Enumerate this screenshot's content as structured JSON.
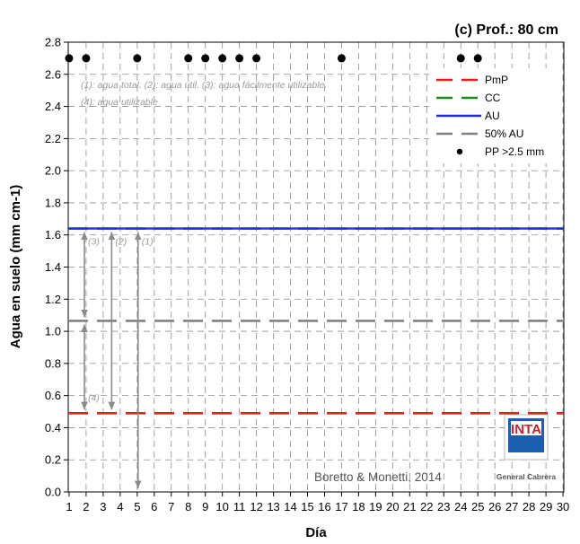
{
  "chart_data": {
    "type": "line",
    "title": "(c) Prof.: 80 cm",
    "xlabel": "Día",
    "ylabel": "Agua en suelo (mm cm-1)",
    "xlim": [
      1,
      30
    ],
    "ylim": [
      0,
      2.8
    ],
    "x_ticks": [
      1,
      2,
      3,
      4,
      5,
      6,
      7,
      8,
      9,
      10,
      11,
      12,
      13,
      14,
      15,
      16,
      17,
      18,
      19,
      20,
      21,
      22,
      23,
      24,
      25,
      26,
      27,
      28,
      29,
      30
    ],
    "y_ticks": [
      "0.0",
      "0.2",
      "0.4",
      "0.6",
      "0.8",
      "1.0",
      "1.2",
      "1.4",
      "1.6",
      "1.8",
      "2.0",
      "2.2",
      "2.4",
      "2.6",
      "2.8"
    ],
    "grid": true,
    "legend_position": "top-right",
    "series": [
      {
        "name": "PmP",
        "color": "#e0201b",
        "style": "dashed",
        "y": 0.49
      },
      {
        "name": "CC",
        "color": "#1a8a1a",
        "style": "dashed",
        "y": 1.64
      },
      {
        "name": "AU",
        "color": "#1f2fd0",
        "style": "solid",
        "y": 1.64
      },
      {
        "name": "50% AU",
        "color": "#808080",
        "style": "dashed",
        "y": 1.065
      },
      {
        "name": "PP >2.5 mm",
        "color": "#000000",
        "style": "markers",
        "x": [
          1,
          2,
          5,
          8,
          9,
          10,
          11,
          12,
          17,
          24,
          25
        ],
        "y": 2.7
      }
    ],
    "annotations": {
      "line1": "(1): agua total.  (2): agua útil.  (3): agua fácilmente utilizable.",
      "line2": "(4): agua utilizable",
      "labels": [
        "(3)",
        "(2)",
        "(1)",
        "(4)"
      ],
      "credit": "Boretto & Monetti, 2014"
    },
    "arrows": [
      {
        "label": "(3)",
        "x": 1.9,
        "y_from": 1.64,
        "y_to": 1.065
      },
      {
        "label": "(2)",
        "x": 3.5,
        "y_from": 1.64,
        "y_to": 0.49
      },
      {
        "label": "(1)",
        "x": 5.05,
        "y_from": 1.64,
        "y_to": 0.0
      },
      {
        "label": "(4)",
        "x": 1.9,
        "y_from": 1.065,
        "y_to": 0.49
      }
    ]
  },
  "logo": {
    "brand": "INTA",
    "subtitle": "General Cabrera",
    "color": "#1b5fb0"
  }
}
